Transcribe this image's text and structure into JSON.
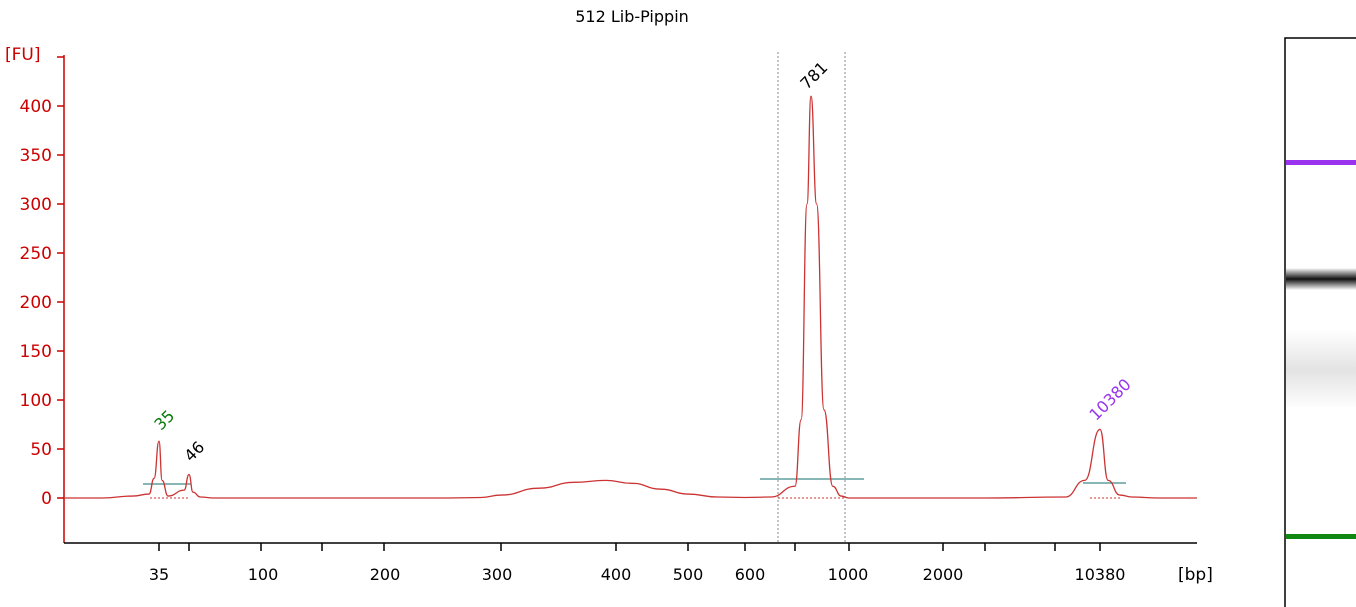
{
  "chart_data": {
    "type": "line",
    "title": "512 Lib-Pippin",
    "ylabel": "[FU]",
    "xlabel": "[bp]",
    "ylim": [
      -45,
      430
    ],
    "x_scale": "log (sizing ladder)",
    "y_ticks": [
      0,
      50,
      100,
      150,
      200,
      250,
      300,
      350,
      400
    ],
    "x_tick_labels": [
      "35",
      "100",
      "200",
      "300",
      "400",
      "500",
      "600",
      "1000",
      "2000",
      "10380"
    ],
    "grid": false,
    "series": [
      {
        "points": [
          [
            25,
            0
          ],
          [
            30,
            2
          ],
          [
            33,
            4
          ],
          [
            34,
            20
          ],
          [
            35,
            58
          ],
          [
            36,
            18
          ],
          [
            38,
            2
          ],
          [
            44,
            8
          ],
          [
            46,
            24
          ],
          [
            48,
            6
          ],
          [
            52,
            1
          ],
          [
            60,
            0
          ],
          [
            150,
            0
          ],
          [
            250,
            0
          ],
          [
            280,
            0.5
          ],
          [
            300,
            3
          ],
          [
            330,
            10
          ],
          [
            360,
            16
          ],
          [
            390,
            18
          ],
          [
            420,
            15
          ],
          [
            460,
            9
          ],
          [
            500,
            4
          ],
          [
            550,
            1
          ],
          [
            600,
            0.5
          ],
          [
            650,
            1
          ],
          [
            700,
            12
          ],
          [
            730,
            80
          ],
          [
            760,
            300
          ],
          [
            781,
            410
          ],
          [
            810,
            300
          ],
          [
            850,
            90
          ],
          [
            900,
            12
          ],
          [
            950,
            2
          ],
          [
            1000,
            0
          ],
          [
            2000,
            0
          ],
          [
            5000,
            0
          ],
          [
            8500,
            1
          ],
          [
            9500,
            18
          ],
          [
            10380,
            70
          ],
          [
            11200,
            18
          ],
          [
            12500,
            3
          ],
          [
            14000,
            1
          ],
          [
            18000,
            0
          ],
          [
            30000,
            0
          ]
        ]
      }
    ],
    "peaks": [
      {
        "label": "35",
        "x": 35,
        "y": 58,
        "color": "#0a7a0a"
      },
      {
        "label": "46",
        "x": 46,
        "y": 24,
        "color": "#000000"
      },
      {
        "label": "781",
        "x": 781,
        "y": 410,
        "color": "#000000"
      },
      {
        "label": "10380",
        "x": 10380,
        "y": 70,
        "color": "#9933ee"
      }
    ],
    "region_markers_bp": [
      650,
      950
    ],
    "colors": {
      "axis": "#cc0000",
      "trace": "#cc3333",
      "baseline_bar": "#5e9e9e",
      "upper_marker": "#9933ee",
      "lower_marker": "#118811"
    }
  },
  "gel_lane": {
    "bands": [
      {
        "name": "upper-marker",
        "color": "#9933ee"
      },
      {
        "name": "library-band",
        "color": "#111111"
      },
      {
        "name": "lower-marker",
        "color": "#118811"
      }
    ]
  }
}
